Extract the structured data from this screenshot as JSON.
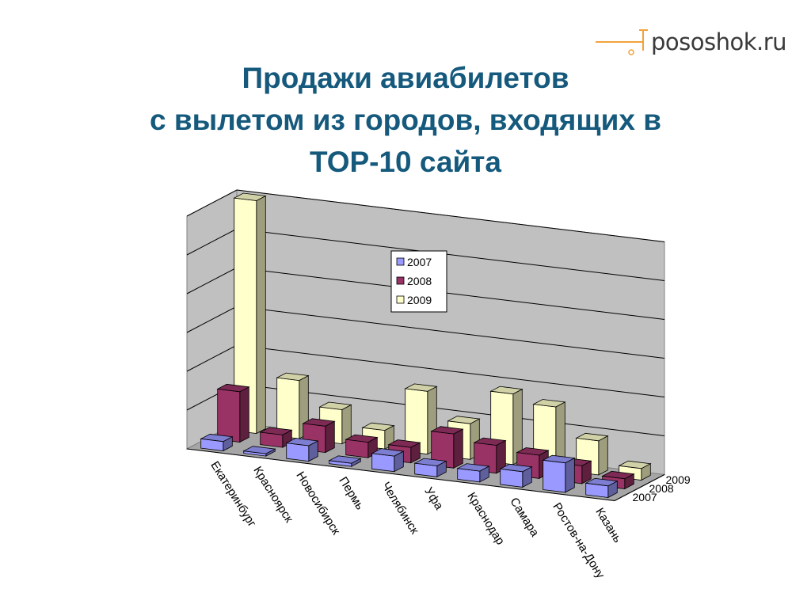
{
  "logo": {
    "text": "pososhok.ru"
  },
  "title": {
    "line1": "Продажи авиабилетов",
    "line2": "с вылетом из городов, входящих в",
    "line3": "ТОР-10 сайта"
  },
  "chart_data": {
    "type": "bar",
    "categories": [
      "Екатеринбург",
      "Красноярск",
      "Новосибирск",
      "Пермь",
      "Челябинск",
      "Уфа",
      "Краснодар",
      "Самара",
      "Ростов-на-Дону",
      "Казань"
    ],
    "series": [
      {
        "name": "2007",
        "values": [
          1.2,
          0.3,
          2.0,
          0.4,
          2.0,
          1.4,
          1.4,
          2.0,
          3.8,
          1.5
        ]
      },
      {
        "name": "2008",
        "values": [
          6.5,
          1.6,
          3.4,
          2.0,
          2.0,
          4.4,
          3.6,
          3.0,
          2.3,
          1.3
        ]
      },
      {
        "name": "2009",
        "values": [
          30.0,
          7.5,
          4.4,
          2.4,
          8.1,
          4.6,
          9.1,
          8.1,
          4.4,
          1.5
        ]
      }
    ],
    "colors": {
      "2007": "#9999ff",
      "2008": "#993366",
      "2009": "#ffffcc"
    },
    "legend_position": "top-center",
    "grid": true,
    "style": "3d-column"
  }
}
